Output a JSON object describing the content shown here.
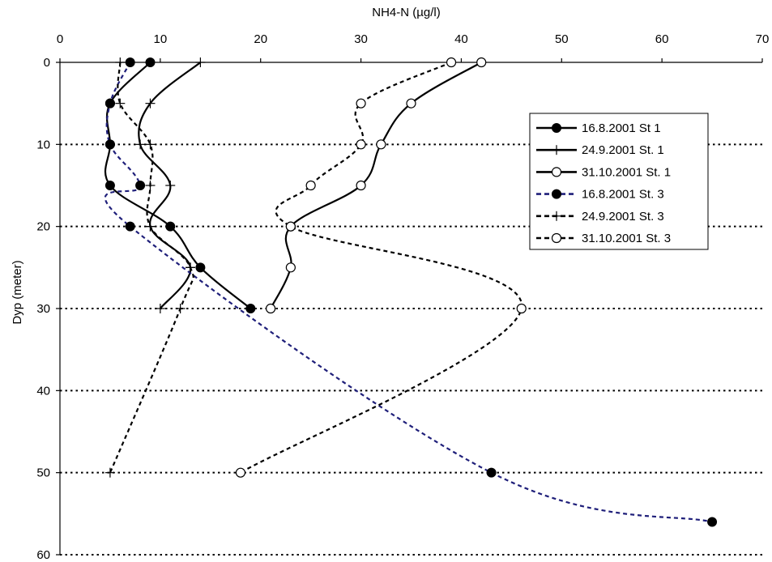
{
  "chart_data": {
    "type": "line",
    "xlabel": "NH4-N (µg/l)",
    "ylabel": "Dyp (meter)",
    "xlim": [
      0,
      70
    ],
    "ylim": [
      0,
      60
    ],
    "y_inverted": true,
    "x_axis_position": "top",
    "x_ticks": [
      "0",
      "10",
      "20",
      "30",
      "40",
      "50",
      "60",
      "70"
    ],
    "y_ticks": [
      "0",
      "10",
      "20",
      "30",
      "40",
      "50",
      "60"
    ],
    "gridlines": "horizontal dotted",
    "legend_placement": "right",
    "series": [
      {
        "name": "16.8.2001 St 1",
        "color": "#000000",
        "dash": "solid",
        "marker": "filled-circle",
        "points": [
          [
            9,
            0
          ],
          [
            5,
            5
          ],
          [
            5,
            10
          ],
          [
            5,
            15
          ],
          [
            11,
            20
          ],
          [
            14,
            25
          ],
          [
            19,
            30
          ]
        ]
      },
      {
        "name": "24.9.2001 St. 1",
        "color": "#000000",
        "dash": "solid",
        "marker": "plus",
        "points": [
          [
            14,
            0
          ],
          [
            9,
            5
          ],
          [
            8,
            10
          ],
          [
            11,
            15
          ],
          [
            9,
            20
          ],
          [
            13,
            25
          ],
          [
            10,
            30
          ]
        ]
      },
      {
        "name": "31.10.2001 St. 1",
        "color": "#000000",
        "dash": "solid",
        "marker": "open-circle",
        "points": [
          [
            42,
            0
          ],
          [
            35,
            5
          ],
          [
            32,
            10
          ],
          [
            30,
            15
          ],
          [
            23,
            20
          ],
          [
            23,
            25
          ],
          [
            21,
            30
          ]
        ]
      },
      {
        "name": "16.8.2001 St. 3",
        "color": "#1f1f7a",
        "dash": "dashed",
        "marker": "filled-circle",
        "points": [
          [
            7,
            0
          ],
          [
            5,
            5
          ],
          [
            5,
            10
          ],
          [
            8,
            15
          ],
          [
            7,
            20
          ],
          [
            43,
            50
          ],
          [
            65,
            56
          ]
        ]
      },
      {
        "name": "24.9.2001 St. 3",
        "color": "#000000",
        "dash": "dashed",
        "marker": "plus",
        "points": [
          [
            6,
            0
          ],
          [
            6,
            5
          ],
          [
            9,
            10
          ],
          [
            9,
            15
          ],
          [
            9,
            20
          ],
          [
            13,
            25
          ],
          [
            12,
            30
          ],
          [
            5,
            50
          ]
        ]
      },
      {
        "name": "31.10.2001 St. 3",
        "color": "#000000",
        "dash": "dashed",
        "marker": "open-circle",
        "points": [
          [
            39,
            0
          ],
          [
            30,
            5
          ],
          [
            30,
            10
          ],
          [
            25,
            15
          ],
          [
            23,
            20
          ],
          [
            46,
            30
          ],
          [
            18,
            50
          ]
        ]
      }
    ]
  }
}
